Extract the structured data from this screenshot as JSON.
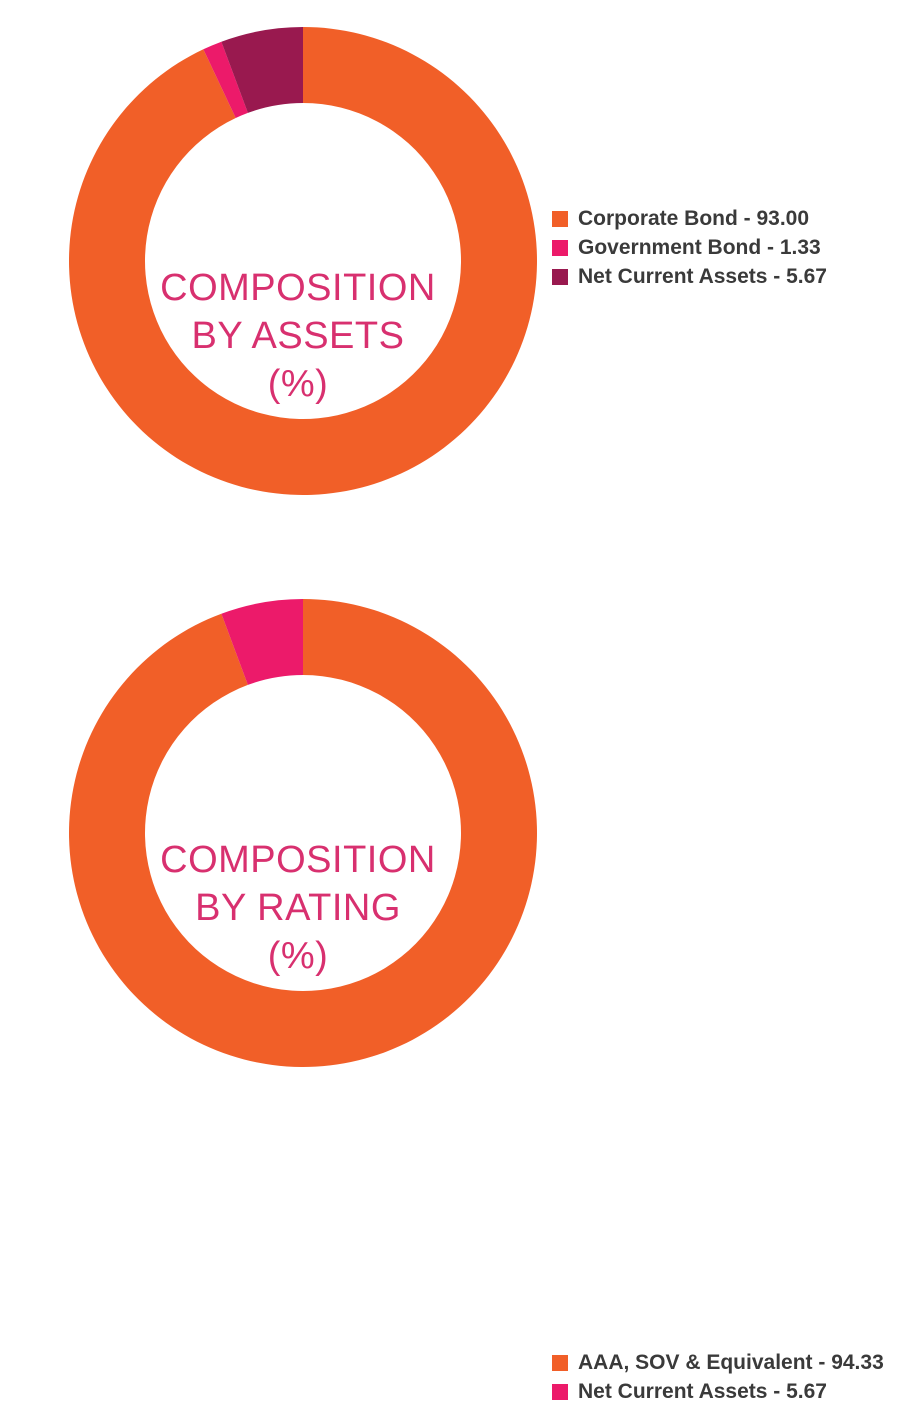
{
  "colors": {
    "orange": "#f15f28",
    "pink": "#ec1a6a",
    "maroon": "#99194f",
    "title": "#d8306f",
    "legend_text": "#3a3a3a"
  },
  "chart_data": [
    {
      "type": "pie",
      "donut": true,
      "title_lines": [
        "COMPOSITION",
        "BY ASSETS",
        "(%)"
      ],
      "categories": [
        "Corporate Bond",
        "Government Bond",
        "Net Current Assets"
      ],
      "values": [
        93.0,
        1.33,
        5.67
      ],
      "legend_labels": [
        "Corporate Bond - 93.00",
        "Government Bond - 1.33",
        "Net Current Assets - 5.67"
      ],
      "colors": [
        "#f15f28",
        "#ec1a6a",
        "#99194f"
      ],
      "legend_position": "right"
    },
    {
      "type": "pie",
      "donut": true,
      "title_lines": [
        "COMPOSITION",
        "BY RATING",
        "(%)"
      ],
      "categories": [
        "AAA, SOV & Equivalent",
        "Net Current Assets"
      ],
      "values": [
        94.33,
        5.67
      ],
      "legend_labels": [
        "AAA, SOV & Equivalent - 94.33",
        "Net Current Assets - 5.67"
      ],
      "colors": [
        "#f15f28",
        "#ec1a6a"
      ],
      "legend_position": "right"
    }
  ]
}
